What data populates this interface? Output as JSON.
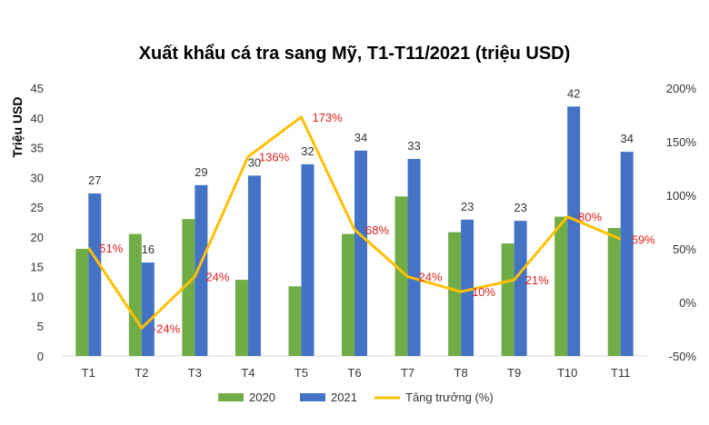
{
  "chart_data": {
    "type": "bar",
    "title": "Xuất khẩu cá tra sang Mỹ, T1-T11/2021 (triệu USD)",
    "ylabel": "Triệu USD",
    "ylim": [
      0,
      45
    ],
    "y_ticks": [
      0,
      5,
      10,
      15,
      20,
      25,
      30,
      35,
      40,
      45
    ],
    "y2lim": [
      -50,
      200
    ],
    "y2_ticks": [
      "-50%",
      "0%",
      "50%",
      "100%",
      "150%",
      "200%"
    ],
    "y2_tick_values": [
      -50,
      0,
      50,
      100,
      150,
      200
    ],
    "categories": [
      "T1",
      "T2",
      "T3",
      "T4",
      "T5",
      "T6",
      "T7",
      "T8",
      "T9",
      "T10",
      "T11"
    ],
    "series": [
      {
        "name": "2020",
        "type": "bar",
        "color": "#70ad47",
        "values": [
          18.0,
          20.5,
          23.0,
          12.8,
          11.7,
          20.5,
          26.8,
          20.8,
          18.9,
          23.4,
          21.5
        ]
      },
      {
        "name": "2021",
        "type": "bar",
        "color": "#4472c4",
        "values": [
          27.3,
          15.7,
          28.7,
          30.3,
          32.2,
          34.5,
          33.1,
          22.9,
          22.7,
          41.9,
          34.3
        ],
        "labels": [
          "27",
          "16",
          "29",
          "30",
          "32",
          "34",
          "33",
          "23",
          "23",
          "42",
          "34"
        ]
      },
      {
        "name": "Tăng trưởng (%)",
        "type": "line",
        "axis": "right",
        "color": "#ffc000",
        "values": [
          51,
          -24,
          24,
          136,
          173,
          68,
          24,
          10,
          21,
          80,
          59
        ],
        "labels": [
          "51%",
          "-24%",
          "24%",
          "136%",
          "173%",
          "68%",
          "24%",
          "10%",
          "21%",
          "80%",
          "59%"
        ],
        "label_color": "#e02020"
      }
    ],
    "legend_position": "bottom",
    "grid": false
  }
}
